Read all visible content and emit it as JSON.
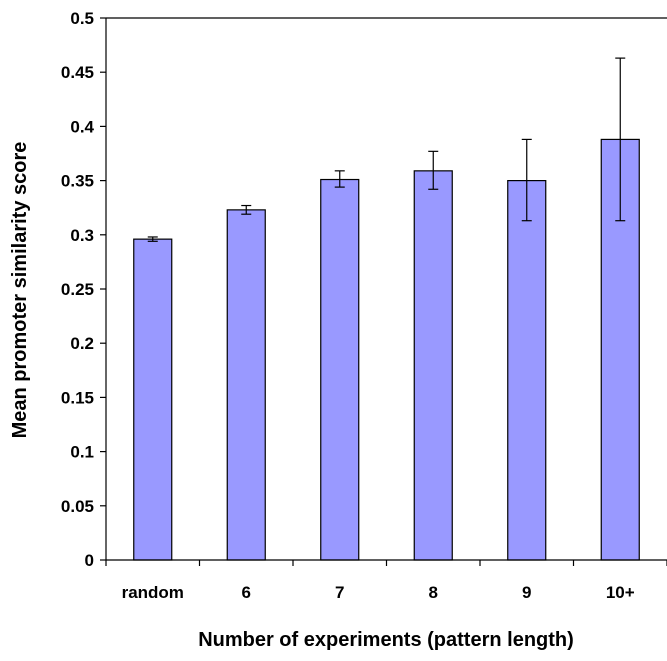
{
  "chart_data": {
    "type": "bar",
    "title": "",
    "xlabel": "Number of experiments (pattern length)",
    "ylabel": "Mean promoter similarity score",
    "categories": [
      "random",
      "6",
      "7",
      "8",
      "9",
      "10+"
    ],
    "series": [
      {
        "values": [
          0.296,
          0.323,
          0.351,
          0.359,
          0.35,
          0.388
        ],
        "error_low": [
          0.294,
          0.319,
          0.344,
          0.342,
          0.313,
          0.313
        ],
        "error_high": [
          0.298,
          0.327,
          0.359,
          0.377,
          0.388,
          0.463
        ],
        "color": "#9999ff"
      }
    ],
    "ylim": [
      0,
      0.5
    ],
    "yticks": [
      0,
      0.05,
      0.1,
      0.15,
      0.2,
      0.25,
      0.3,
      0.35,
      0.4,
      0.45,
      0.5
    ],
    "ytick_labels": [
      "0",
      "0.05",
      "0.1",
      "0.15",
      "0.2",
      "0.25",
      "0.3",
      "0.35",
      "0.4",
      "0.45",
      "0.5"
    ],
    "grid": false,
    "legend": "none"
  }
}
